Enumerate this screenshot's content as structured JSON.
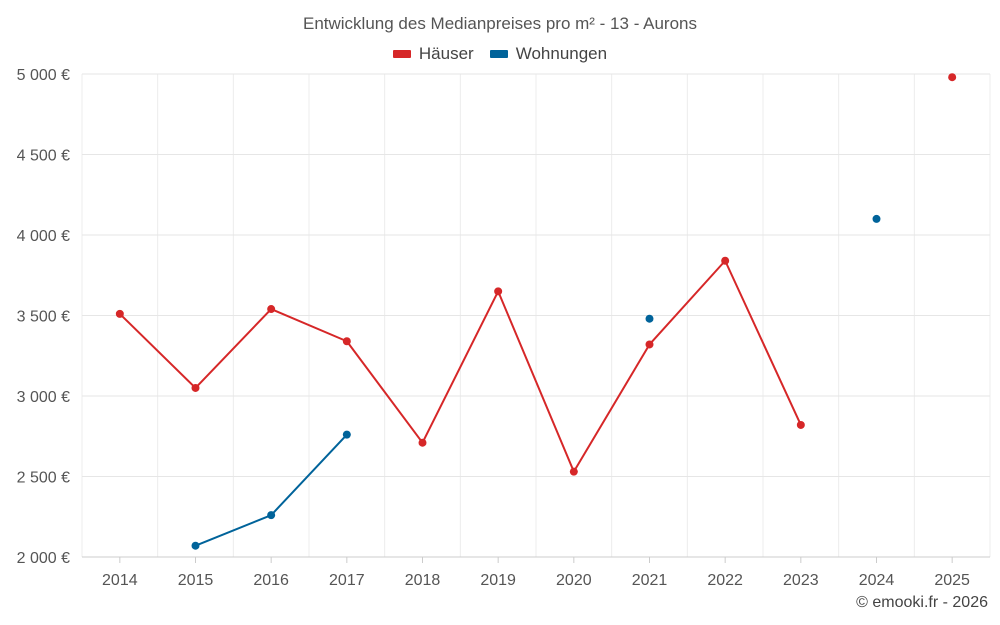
{
  "chart_data": {
    "type": "line",
    "title": "Entwicklung des Medianpreises pro m² - 13 - Aurons",
    "categories": [
      "2014",
      "2015",
      "2016",
      "2017",
      "2018",
      "2019",
      "2020",
      "2021",
      "2022",
      "2023",
      "2024",
      "2025"
    ],
    "ylim": [
      2000,
      5000
    ],
    "y_ticks": [
      2000,
      2500,
      3000,
      3500,
      4000,
      4500,
      5000
    ],
    "y_tick_labels": [
      "2 000 €",
      "2 500 €",
      "3 000 €",
      "3 500 €",
      "4 000 €",
      "4 500 €",
      "5 000 €"
    ],
    "grid": true,
    "legend_position": "top-center",
    "series": [
      {
        "name": "Häuser",
        "color": "#d62728",
        "values": [
          3510,
          3050,
          3540,
          3340,
          2710,
          3650,
          2530,
          3320,
          3840,
          2820,
          null,
          4980
        ]
      },
      {
        "name": "Wohnungen",
        "color": "#00639a",
        "values": [
          null,
          2070,
          2260,
          2760,
          null,
          null,
          null,
          3480,
          null,
          null,
          4100,
          null
        ]
      }
    ]
  },
  "credit": "© emooki.fr - 2026"
}
